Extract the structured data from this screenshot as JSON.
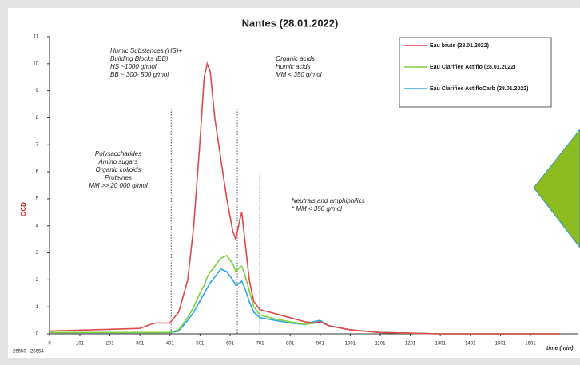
{
  "chart_data": {
    "type": "line",
    "title": "Nantes (28.01.2022)",
    "y_label": "OCD",
    "x_label": "time (min)",
    "footnote": "25550 · 25554",
    "x": [
      0,
      300,
      350,
      400,
      430,
      460,
      480,
      500,
      515,
      525,
      535,
      550,
      570,
      590,
      610,
      620,
      635,
      640,
      650,
      665,
      680,
      700,
      750,
      800,
      850,
      880,
      900,
      930,
      1000,
      1100,
      1300,
      1700
    ],
    "series": [
      {
        "name": "Eau brute (28.01.2022)",
        "color": "#e0474c",
        "values": [
          0.1,
          0.2,
          0.4,
          0.4,
          0.8,
          2,
          4,
          7,
          9.5,
          10,
          9.7,
          8,
          6.5,
          5,
          3.8,
          3.5,
          4.3,
          4.5,
          3.5,
          2,
          1.2,
          0.9,
          0.75,
          0.6,
          0.45,
          0.4,
          0.45,
          0.3,
          0.15,
          0.05,
          0,
          0
        ]
      },
      {
        "name": "Eau Clarifiee Actiflo (28.01.2022)",
        "color": "#7dcf3c",
        "values": [
          0.05,
          0.05,
          0.05,
          0.05,
          0.15,
          0.6,
          1,
          1.5,
          1.8,
          2.1,
          2.3,
          2.5,
          2.8,
          2.9,
          2.6,
          2.3,
          2.5,
          2.5,
          2.2,
          1.6,
          1,
          0.7,
          0.55,
          0.45,
          0.35,
          0.4,
          0.45,
          0.3,
          0.15,
          0.05,
          0,
          0
        ]
      },
      {
        "name": "Eau Clarifiee ActifloCarb (28.01.2022)",
        "color": "#2aa8df",
        "values": [
          0.05,
          0.05,
          0.05,
          0.05,
          0.1,
          0.5,
          0.8,
          1.2,
          1.5,
          1.7,
          1.9,
          2.1,
          2.4,
          2.3,
          2,
          1.8,
          1.9,
          1.95,
          1.7,
          1.2,
          0.8,
          0.6,
          0.5,
          0.4,
          0.35,
          0.45,
          0.5,
          0.3,
          0.15,
          0.05,
          0,
          0
        ]
      }
    ],
    "xlim": [
      0,
      1760
    ],
    "xticks": [
      0,
      101,
      201,
      301,
      401,
      501,
      601,
      701,
      801,
      901,
      1001,
      1101,
      1201,
      1301,
      1401,
      1501,
      1601
    ],
    "ylim": [
      0,
      11
    ],
    "yticks": [
      0,
      1,
      2,
      3,
      4,
      5,
      6,
      7,
      8,
      9,
      10,
      11
    ],
    "reference_lines": [
      405,
      625,
      700
    ],
    "annotations": [
      [
        "Humic Substances (HS)+",
        "Building Blocks (BB)",
        "HS ~1000 g/mol",
        "BB ~ 300- 500 g/mol"
      ],
      [
        "Organic acids",
        "Humic acids",
        "MM < 350 g/mol"
      ],
      [
        "Polysaccharides",
        "Amino sugars",
        "Organic colloids",
        "Proteines",
        "MM >> 20 000 g/mol"
      ],
      [
        "Neutrals and amphiphilics",
        "* MM < 350 g/mol"
      ]
    ],
    "legend": "upper right"
  }
}
